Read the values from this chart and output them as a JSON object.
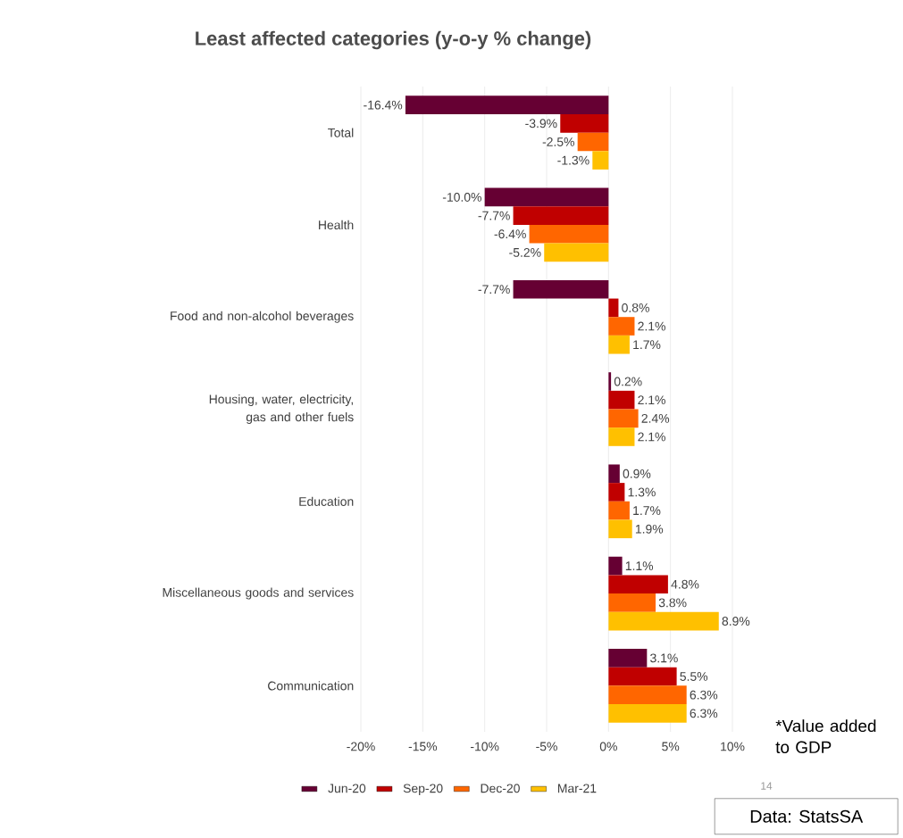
{
  "chart_data": {
    "type": "bar",
    "orientation": "horizontal",
    "title": "Least affected categories (y-o-y % change)",
    "categories": [
      "Total",
      "Health",
      "Food and non-alcohol beverages",
      "Housing, water, electricity, gas and other fuels",
      "Education",
      "Miscellaneous goods and services",
      "Communication"
    ],
    "series": [
      {
        "name": "Jun-20",
        "color": "#660033",
        "values": [
          -16.4,
          -10.0,
          -7.7,
          0.2,
          0.9,
          1.1,
          3.1
        ],
        "value_labels": [
          "-16.4%",
          "-10.0%",
          "-7.7%",
          "0.2%",
          "0.9%",
          "1.1%",
          "3.1%"
        ]
      },
      {
        "name": "Sep-20",
        "color": "#c00000",
        "values": [
          -3.9,
          -7.7,
          0.8,
          2.1,
          1.3,
          4.8,
          5.5
        ],
        "value_labels": [
          "-3.9%",
          "-7.7%",
          "0.8%",
          "2.1%",
          "1.3%",
          "4.8%",
          "5.5%"
        ]
      },
      {
        "name": "Dec-20",
        "color": "#ff6600",
        "values": [
          -2.5,
          -6.4,
          2.1,
          2.4,
          1.7,
          3.8,
          6.3
        ],
        "value_labels": [
          "-2.5%",
          "-6.4%",
          "2.1%",
          "2.4%",
          "1.7%",
          "3.8%",
          "6.3%"
        ]
      },
      {
        "name": "Mar-21",
        "color": "#ffc000",
        "values": [
          -1.3,
          -5.2,
          1.7,
          2.1,
          1.9,
          8.9,
          6.3
        ],
        "value_labels": [
          "-1.3%",
          "-5.2%",
          "1.7%",
          "2.1%",
          "1.9%",
          "8.9%",
          "6.3%"
        ]
      }
    ],
    "xlim": [
      -20,
      10
    ],
    "xticks": [
      {
        "value": -20,
        "label": "-20%"
      },
      {
        "value": -15,
        "label": "-15%"
      },
      {
        "value": -10,
        "label": "-10%"
      },
      {
        "value": -5,
        "label": "-5%"
      },
      {
        "value": 0,
        "label": "0%"
      },
      {
        "value": 5,
        "label": "5%"
      },
      {
        "value": 10,
        "label": "10%"
      }
    ],
    "grid": "x",
    "legend": "bottom",
    "annotations": [
      "*Value added to GDP",
      "14",
      "Data: StatsSA"
    ]
  }
}
